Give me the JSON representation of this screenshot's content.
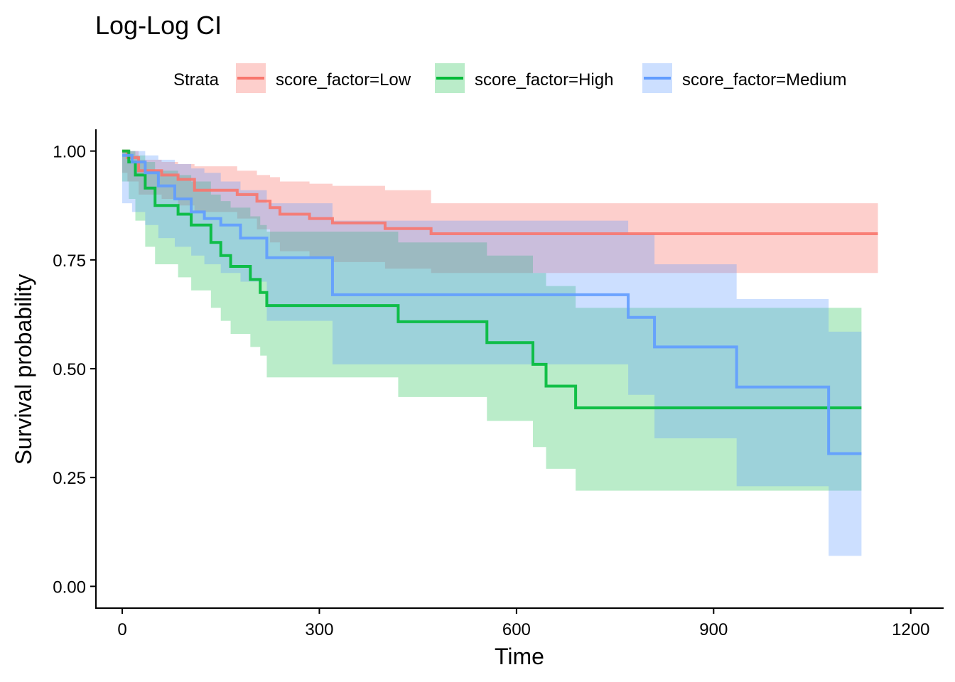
{
  "chart_data": {
    "type": "line",
    "step": true,
    "title": "Log-Log CI",
    "xlabel": "Time",
    "ylabel": "Survival probability",
    "xlim": [
      -40,
      1250
    ],
    "ylim": [
      -0.05,
      1.05
    ],
    "x_ticks": [
      0,
      300,
      600,
      900,
      1200
    ],
    "x_tick_labels": [
      "0",
      "300",
      "600",
      "900",
      "1200"
    ],
    "y_ticks": [
      0,
      0.25,
      0.5,
      0.75,
      1.0
    ],
    "y_tick_labels": [
      "0.00",
      "0.25",
      "0.50",
      "0.75",
      "1.00"
    ],
    "grid": false,
    "legend": {
      "title": "Strata",
      "placement": "top"
    },
    "series": [
      {
        "name": "score_factor=Low",
        "color": "#f8766d",
        "fill_opacity": 0.35,
        "x": [
          0,
          8,
          25,
          60,
          85,
          110,
          175,
          205,
          225,
          240,
          285,
          320,
          400,
          470,
          1150
        ],
        "y": [
          1.0,
          0.985,
          0.955,
          0.945,
          0.935,
          0.91,
          0.9,
          0.885,
          0.87,
          0.855,
          0.845,
          0.835,
          0.822,
          0.81,
          0.81
        ],
        "lower": [
          0.95,
          0.93,
          0.9,
          0.89,
          0.875,
          0.86,
          0.845,
          0.82,
          0.79,
          0.77,
          0.755,
          0.745,
          0.73,
          0.72,
          0.705
        ],
        "upper": [
          1.0,
          1.0,
          0.98,
          0.975,
          0.97,
          0.965,
          0.955,
          0.945,
          0.94,
          0.93,
          0.925,
          0.92,
          0.91,
          0.88,
          0.88
        ]
      },
      {
        "name": "score_factor=High",
        "color": "#00ba38",
        "fill_opacity": 0.27,
        "x": [
          0,
          10,
          20,
          35,
          50,
          85,
          105,
          135,
          150,
          165,
          195,
          210,
          220,
          420,
          555,
          625,
          645,
          690,
          1125
        ],
        "y": [
          1.0,
          0.975,
          0.945,
          0.915,
          0.875,
          0.855,
          0.83,
          0.79,
          0.76,
          0.735,
          0.705,
          0.675,
          0.645,
          0.608,
          0.56,
          0.51,
          0.46,
          0.41,
          0.41
        ],
        "lower": [
          0.93,
          0.89,
          0.84,
          0.78,
          0.74,
          0.71,
          0.68,
          0.64,
          0.61,
          0.58,
          0.55,
          0.53,
          0.48,
          0.435,
          0.38,
          0.32,
          0.27,
          0.22,
          0.22
        ],
        "upper": [
          1.0,
          1.0,
          0.99,
          0.975,
          0.955,
          0.945,
          0.93,
          0.9,
          0.885,
          0.87,
          0.85,
          0.83,
          0.815,
          0.79,
          0.76,
          0.72,
          0.69,
          0.64,
          0.585
        ]
      },
      {
        "name": "score_factor=Medium",
        "color": "#619cff",
        "fill_opacity": 0.32,
        "x": [
          0,
          15,
          35,
          55,
          80,
          105,
          125,
          150,
          180,
          220,
          320,
          770,
          810,
          935,
          1075,
          1125
        ],
        "y": [
          0.99,
          0.975,
          0.95,
          0.92,
          0.89,
          0.86,
          0.845,
          0.83,
          0.8,
          0.755,
          0.67,
          0.618,
          0.55,
          0.458,
          0.305,
          0.305
        ],
        "lower": [
          0.88,
          0.86,
          0.83,
          0.8,
          0.78,
          0.76,
          0.74,
          0.72,
          0.7,
          0.61,
          0.51,
          0.44,
          0.34,
          0.23,
          0.07,
          0.07
        ],
        "upper": [
          1.0,
          1.0,
          0.99,
          0.98,
          0.97,
          0.96,
          0.95,
          0.93,
          0.91,
          0.88,
          0.84,
          0.81,
          0.74,
          0.66,
          0.585,
          0.585
        ]
      }
    ]
  }
}
